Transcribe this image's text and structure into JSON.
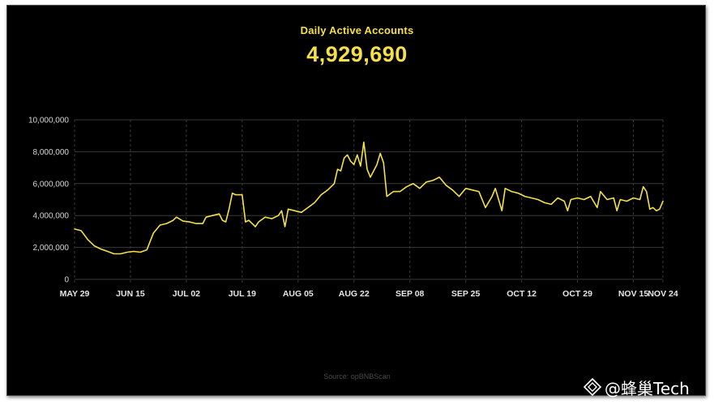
{
  "title": "Daily Active Accounts",
  "headline_value": "4,929,690",
  "source": "Source: opBNBScan",
  "watermark": "@蜂巢Tech",
  "colors": {
    "background": "#000000",
    "accent": "#f5e04a",
    "grid": "#3a3a3a"
  },
  "chart_data": {
    "type": "line",
    "title": "Daily Active Accounts",
    "xlabel": "",
    "ylabel": "",
    "ylim": [
      0,
      10000000
    ],
    "y_ticks": [
      "10,000,000",
      "8,000,000",
      "6,000,000",
      "4,000,000",
      "2,000,000",
      "0"
    ],
    "y_tick_values": [
      10000000,
      8000000,
      6000000,
      4000000,
      2000000,
      0
    ],
    "x_ticks": [
      "MAY 29",
      "JUN 15",
      "JUL 02",
      "JUL 19",
      "AUG 05",
      "AUG 22",
      "SEP 08",
      "SEP 25",
      "OCT 12",
      "OCT 29",
      "NOV 15",
      "NOV 24"
    ],
    "grid": "horizontal solid, vertical dashed",
    "series": [
      {
        "values": [
          [
            "2023-05-29",
            3150000
          ],
          [
            "2023-05-31",
            3050000
          ],
          [
            "2023-06-02",
            2500000
          ],
          [
            "2023-06-04",
            2100000
          ],
          [
            "2023-06-06",
            1900000
          ],
          [
            "2023-06-08",
            1750000
          ],
          [
            "2023-06-10",
            1600000
          ],
          [
            "2023-06-12",
            1600000
          ],
          [
            "2023-06-14",
            1700000
          ],
          [
            "2023-06-16",
            1750000
          ],
          [
            "2023-06-18",
            1700000
          ],
          [
            "2023-06-20",
            1850000
          ],
          [
            "2023-06-22",
            2900000
          ],
          [
            "2023-06-24",
            3400000
          ],
          [
            "2023-06-26",
            3500000
          ],
          [
            "2023-06-28",
            3700000
          ],
          [
            "2023-06-29",
            3900000
          ],
          [
            "2023-07-01",
            3650000
          ],
          [
            "2023-07-03",
            3600000
          ],
          [
            "2023-07-05",
            3500000
          ],
          [
            "2023-07-07",
            3500000
          ],
          [
            "2023-07-08",
            3900000
          ],
          [
            "2023-07-10",
            4000000
          ],
          [
            "2023-07-12",
            4100000
          ],
          [
            "2023-07-13",
            3700000
          ],
          [
            "2023-07-14",
            3600000
          ],
          [
            "2023-07-15",
            4400000
          ],
          [
            "2023-07-16",
            5400000
          ],
          [
            "2023-07-17",
            5300000
          ],
          [
            "2023-07-19",
            5300000
          ],
          [
            "2023-07-20",
            3600000
          ],
          [
            "2023-07-21",
            3700000
          ],
          [
            "2023-07-23",
            3300000
          ],
          [
            "2023-07-24",
            3600000
          ],
          [
            "2023-07-26",
            3900000
          ],
          [
            "2023-07-28",
            3800000
          ],
          [
            "2023-07-30",
            4000000
          ],
          [
            "2023-07-31",
            4300000
          ],
          [
            "2023-08-01",
            3300000
          ],
          [
            "2023-08-02",
            4400000
          ],
          [
            "2023-08-04",
            4300000
          ],
          [
            "2023-08-06",
            4200000
          ],
          [
            "2023-08-08",
            4500000
          ],
          [
            "2023-08-10",
            4800000
          ],
          [
            "2023-08-12",
            5300000
          ],
          [
            "2023-08-14",
            5600000
          ],
          [
            "2023-08-16",
            6000000
          ],
          [
            "2023-08-17",
            6900000
          ],
          [
            "2023-08-18",
            6800000
          ],
          [
            "2023-08-19",
            7600000
          ],
          [
            "2023-08-20",
            7800000
          ],
          [
            "2023-08-21",
            7400000
          ],
          [
            "2023-08-22",
            7200000
          ],
          [
            "2023-08-23",
            7800000
          ],
          [
            "2023-08-24",
            7100000
          ],
          [
            "2023-08-25",
            8600000
          ],
          [
            "2023-08-26",
            6900000
          ],
          [
            "2023-08-27",
            6400000
          ],
          [
            "2023-08-28",
            6800000
          ],
          [
            "2023-08-29",
            7200000
          ],
          [
            "2023-08-30",
            7900000
          ],
          [
            "2023-08-31",
            7300000
          ],
          [
            "2023-09-01",
            5200000
          ],
          [
            "2023-09-03",
            5500000
          ],
          [
            "2023-09-05",
            5500000
          ],
          [
            "2023-09-07",
            5800000
          ],
          [
            "2023-09-09",
            6000000
          ],
          [
            "2023-09-11",
            5700000
          ],
          [
            "2023-09-13",
            6100000
          ],
          [
            "2023-09-15",
            6200000
          ],
          [
            "2023-09-17",
            6400000
          ],
          [
            "2023-09-19",
            5900000
          ],
          [
            "2023-09-21",
            5600000
          ],
          [
            "2023-09-23",
            5200000
          ],
          [
            "2023-09-25",
            5700000
          ],
          [
            "2023-09-27",
            5600000
          ],
          [
            "2023-09-29",
            5500000
          ],
          [
            "2023-10-01",
            4500000
          ],
          [
            "2023-10-03",
            5200000
          ],
          [
            "2023-10-04",
            5700000
          ],
          [
            "2023-10-06",
            4300000
          ],
          [
            "2023-10-07",
            5700000
          ],
          [
            "2023-10-09",
            5500000
          ],
          [
            "2023-10-11",
            5400000
          ],
          [
            "2023-10-13",
            5200000
          ],
          [
            "2023-10-15",
            5100000
          ],
          [
            "2023-10-17",
            5000000
          ],
          [
            "2023-10-19",
            4800000
          ],
          [
            "2023-10-21",
            4700000
          ],
          [
            "2023-10-23",
            5100000
          ],
          [
            "2023-10-25",
            4900000
          ],
          [
            "2023-10-26",
            4300000
          ],
          [
            "2023-10-27",
            5000000
          ],
          [
            "2023-10-29",
            5100000
          ],
          [
            "2023-10-31",
            5000000
          ],
          [
            "2023-11-02",
            5200000
          ],
          [
            "2023-11-04",
            4500000
          ],
          [
            "2023-11-05",
            5500000
          ],
          [
            "2023-11-07",
            5000000
          ],
          [
            "2023-11-09",
            5100000
          ],
          [
            "2023-11-10",
            4300000
          ],
          [
            "2023-11-11",
            5000000
          ],
          [
            "2023-11-13",
            4900000
          ],
          [
            "2023-11-15",
            5100000
          ],
          [
            "2023-11-17",
            5000000
          ],
          [
            "2023-11-18",
            5800000
          ],
          [
            "2023-11-19",
            5500000
          ],
          [
            "2023-11-20",
            4400000
          ],
          [
            "2023-11-21",
            4500000
          ],
          [
            "2023-11-22",
            4300000
          ],
          [
            "2023-11-23",
            4400000
          ],
          [
            "2023-11-24",
            4900000
          ]
        ]
      }
    ]
  }
}
